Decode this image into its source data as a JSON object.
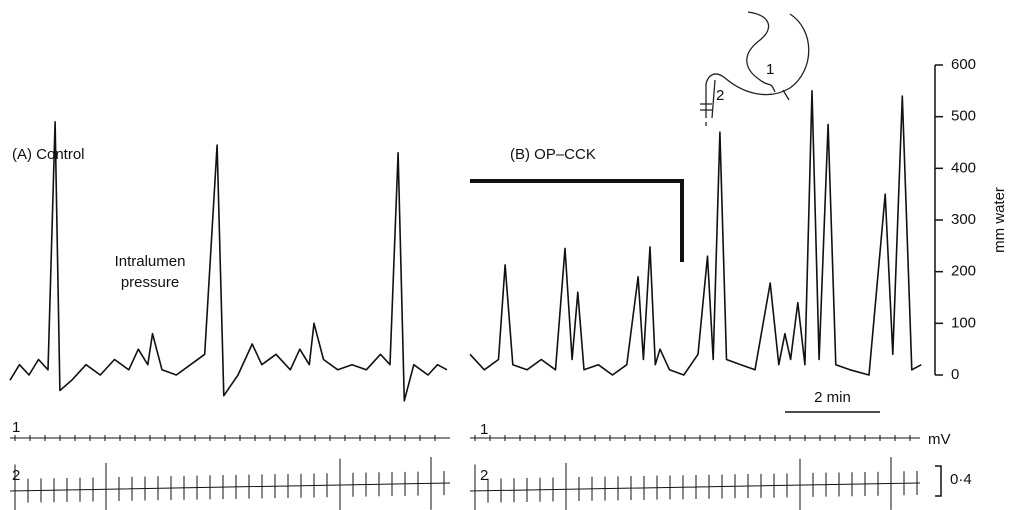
{
  "chart_data": [
    {
      "type": "line",
      "title": "(A) Control",
      "annotation": [
        "Intralumen",
        "pressure"
      ],
      "trace_labels": [
        "1",
        "2"
      ],
      "x": [
        0,
        0.2,
        0.4,
        0.6,
        0.8,
        0.95,
        1.05,
        1.3,
        1.6,
        1.9,
        2.2,
        2.5,
        2.7,
        2.9,
        3.0,
        3.2,
        3.5,
        3.8,
        4.1,
        4.36,
        4.5,
        4.8,
        5.1,
        5.3,
        5.6,
        5.9,
        6.1,
        6.3,
        6.4,
        6.6,
        6.9,
        7.2,
        7.5,
        7.8,
        8.0,
        8.17,
        8.3,
        8.5,
        8.8,
        9.0,
        9.2
      ],
      "values": [
        -10,
        20,
        0,
        30,
        10,
        490,
        -30,
        -10,
        20,
        0,
        30,
        10,
        50,
        20,
        80,
        10,
        0,
        20,
        40,
        445,
        -40,
        0,
        60,
        20,
        40,
        10,
        50,
        20,
        100,
        30,
        10,
        20,
        10,
        40,
        20,
        430,
        -50,
        20,
        0,
        20,
        10
      ],
      "color": "#111111"
    },
    {
      "type": "line",
      "title": "(B) OP–CCK",
      "trace_labels": [
        "1",
        "2"
      ],
      "stomach_labels": [
        "1",
        "2"
      ],
      "x": [
        0,
        0.3,
        0.6,
        0.74,
        0.9,
        1.2,
        1.5,
        1.8,
        2.0,
        2.15,
        2.27,
        2.4,
        2.7,
        3.0,
        3.3,
        3.54,
        3.65,
        3.79,
        3.9,
        4.0,
        4.2,
        4.5,
        4.8,
        5.0,
        5.12,
        5.26,
        5.4,
        5.7,
        6.0,
        6.32,
        6.5,
        6.63,
        6.75,
        6.9,
        7.05,
        7.2,
        7.35,
        7.54,
        7.7,
        8.0,
        8.4,
        8.74,
        8.9,
        9.1,
        9.3,
        9.5
      ],
      "values": [
        40,
        10,
        30,
        213,
        20,
        10,
        30,
        10,
        245,
        30,
        160,
        10,
        20,
        0,
        20,
        190,
        30,
        248,
        20,
        50,
        10,
        0,
        40,
        230,
        30,
        470,
        30,
        20,
        10,
        178,
        20,
        80,
        30,
        140,
        20,
        550,
        30,
        485,
        20,
        10,
        0,
        350,
        40,
        540,
        10,
        20
      ],
      "color": "#111111",
      "ylim": [
        0,
        600
      ],
      "yticks": [
        0,
        100,
        200,
        300,
        400,
        500,
        600
      ],
      "ylabel": "mm water",
      "scale_bar": {
        "value": 2,
        "label": "2 min"
      },
      "voltage_unit": "mV",
      "voltage_scale": "0·4"
    }
  ]
}
